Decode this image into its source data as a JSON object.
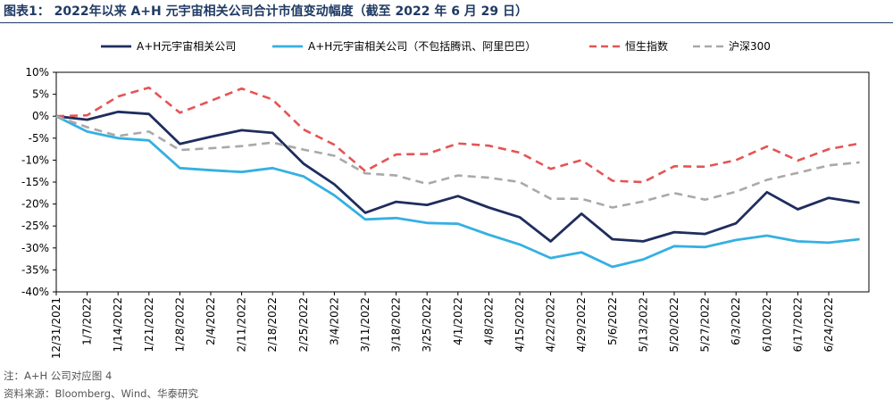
{
  "title": "图表1： 2022年以来 A+H 元宇宙相关公司合计市值变动幅度（截至 2022 年 6 月 29 日）",
  "footnote": "注：A+H 公司对应图 4",
  "source": "资料来源：Bloomberg、Wind、华泰研究",
  "chart_data": {
    "type": "line",
    "x": [
      "12/31/2021",
      "1/7/2022",
      "1/14/2022",
      "1/21/2022",
      "1/28/2022",
      "2/4/2022",
      "2/11/2022",
      "2/18/2022",
      "2/25/2022",
      "3/4/2022",
      "3/11/2022",
      "3/18/2022",
      "3/25/2022",
      "4/1/2022",
      "4/8/2022",
      "4/15/2022",
      "4/22/2022",
      "4/29/2022",
      "5/6/2022",
      "5/13/2022",
      "5/20/2022",
      "5/27/2022",
      "6/3/2022",
      "6/10/2022",
      "6/17/2022",
      "6/24/2022",
      "6/29/2022"
    ],
    "x_tick_labels": [
      "12/31/2021",
      "1/7/2022",
      "1/14/2022",
      "1/21/2022",
      "1/28/2022",
      "2/4/2022",
      "2/11/2022",
      "2/18/2022",
      "2/25/2022",
      "3/4/2022",
      "3/11/2022",
      "3/18/2022",
      "3/25/2022",
      "4/1/2022",
      "4/8/2022",
      "4/15/2022",
      "4/22/2022",
      "4/29/2022",
      "5/6/2022",
      "5/13/2022",
      "5/20/2022",
      "5/27/2022",
      "6/3/2022",
      "6/10/2022",
      "6/17/2022",
      "6/24/2022"
    ],
    "y_ticks": [
      10,
      5,
      0,
      -5,
      -10,
      -15,
      -20,
      -25,
      -30,
      -35,
      -40
    ],
    "y_tick_format": "%",
    "ylim": [
      -40,
      10
    ],
    "grid": false,
    "legend_position": "top",
    "series": [
      {
        "name": "A+H元宇宙相关公司",
        "color": "#1f2d5e",
        "dash": "solid",
        "values": [
          0,
          -0.8,
          1.0,
          0.5,
          -6.3,
          -4.7,
          -3.2,
          -3.8,
          -10.8,
          -15.5,
          -22.0,
          -19.5,
          -20.2,
          -18.2,
          -20.8,
          -23.0,
          -28.5,
          -22.2,
          -28.0,
          -28.5,
          -26.4,
          -26.8,
          -24.4,
          -17.3,
          -21.2,
          -18.6,
          -19.7
        ]
      },
      {
        "name": "A+H元宇宙相关公司（不包括腾讯、阿里巴巴）",
        "color": "#35b0e2",
        "dash": "solid",
        "values": [
          0,
          -3.5,
          -5.0,
          -5.5,
          -11.8,
          -12.3,
          -12.7,
          -11.8,
          -13.7,
          -18.0,
          -23.5,
          -23.2,
          -24.3,
          -24.5,
          -27.0,
          -29.2,
          -32.3,
          -31.0,
          -34.3,
          -32.6,
          -29.6,
          -29.8,
          -28.2,
          -27.2,
          -28.5,
          -28.8,
          -28.0
        ]
      },
      {
        "name": "恒生指数",
        "color": "#e55454",
        "dash": "dashed",
        "values": [
          0,
          0.2,
          4.5,
          6.5,
          0.8,
          3.5,
          6.3,
          3.8,
          -3.0,
          -6.5,
          -12.5,
          -8.7,
          -8.6,
          -6.2,
          -6.7,
          -8.3,
          -12.0,
          -10.0,
          -14.7,
          -15.0,
          -11.4,
          -11.5,
          -10.0,
          -6.9,
          -10.1,
          -7.5,
          -6.2
        ]
      },
      {
        "name": "沪深300",
        "color": "#a9a9a9",
        "dash": "dashed",
        "values": [
          0,
          -2.5,
          -4.5,
          -3.5,
          -7.7,
          -7.3,
          -6.8,
          -6.0,
          -7.6,
          -9.0,
          -13.0,
          -13.5,
          -15.4,
          -13.5,
          -14.0,
          -15.0,
          -18.8,
          -18.8,
          -20.8,
          -19.4,
          -17.5,
          -19.0,
          -17.2,
          -14.5,
          -12.9,
          -11.2,
          -10.5
        ]
      }
    ]
  }
}
